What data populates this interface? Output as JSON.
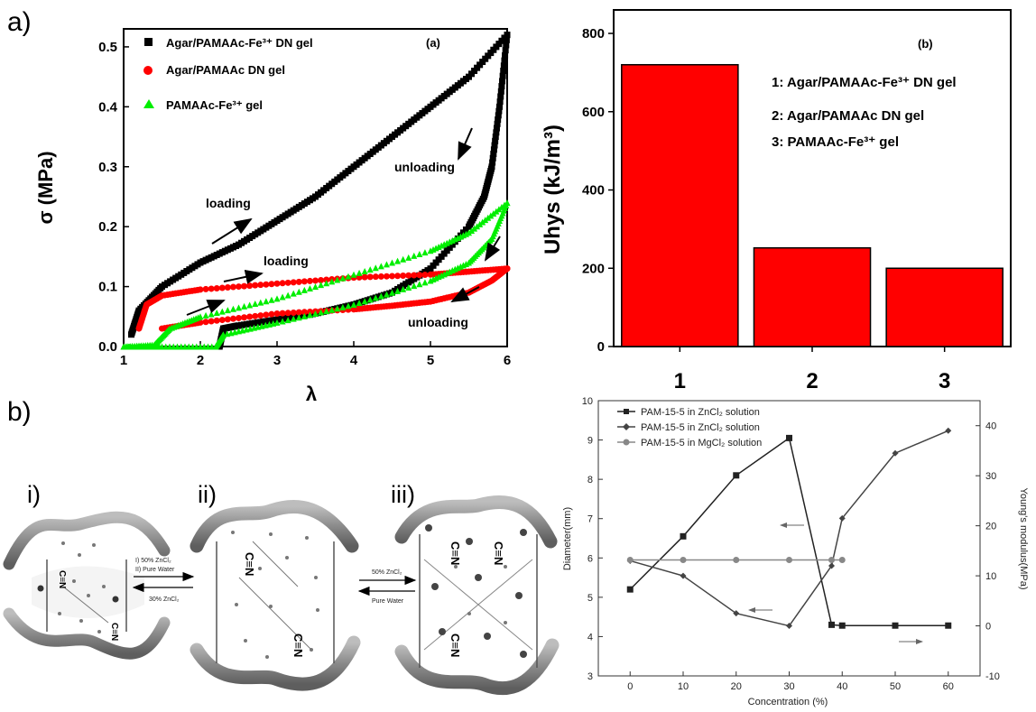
{
  "panel_labels": {
    "a": "a)",
    "b": "b)"
  },
  "chart_data": [
    {
      "type": "line",
      "panel_tag": "(a)",
      "xlabel": "λ",
      "ylabel": "σ (MPa)",
      "xlim": [
        1,
        6
      ],
      "ylim": [
        0,
        0.53
      ],
      "xticks": [
        1,
        2,
        3,
        4,
        5,
        6
      ],
      "yticks": [
        0.0,
        0.1,
        0.2,
        0.3,
        0.4,
        0.5
      ],
      "legend_position": "top-left",
      "annotations": [
        "loading",
        "unloading",
        "loading",
        "unloading"
      ],
      "series": [
        {
          "name": "Agar/PAMAAc-Fe³⁺ DN gel",
          "color": "#000000",
          "marker": "square",
          "loading": [
            [
              1.1,
              0.02
            ],
            [
              1.2,
              0.06
            ],
            [
              1.5,
              0.1
            ],
            [
              2.0,
              0.14
            ],
            [
              2.5,
              0.17
            ],
            [
              3.0,
              0.21
            ],
            [
              3.5,
              0.25
            ],
            [
              4.0,
              0.3
            ],
            [
              4.5,
              0.35
            ],
            [
              5.0,
              0.4
            ],
            [
              5.5,
              0.45
            ],
            [
              6.0,
              0.52
            ]
          ],
          "unloading": [
            [
              6.0,
              0.52
            ],
            [
              5.9,
              0.4
            ],
            [
              5.8,
              0.3
            ],
            [
              5.7,
              0.25
            ],
            [
              5.5,
              0.2
            ],
            [
              5.0,
              0.13
            ],
            [
              4.5,
              0.09
            ],
            [
              4.0,
              0.07
            ],
            [
              3.5,
              0.055
            ],
            [
              3.0,
              0.045
            ],
            [
              2.5,
              0.035
            ],
            [
              2.3,
              0.03
            ],
            [
              2.25,
              0.0
            ]
          ]
        },
        {
          "name": "Agar/PAMAAc DN gel",
          "color": "#ff0000",
          "marker": "circle",
          "loading": [
            [
              1.2,
              0.03
            ],
            [
              1.3,
              0.07
            ],
            [
              1.5,
              0.085
            ],
            [
              2.0,
              0.095
            ],
            [
              3.0,
              0.105
            ],
            [
              4.0,
              0.115
            ],
            [
              5.0,
              0.12
            ],
            [
              5.5,
              0.125
            ],
            [
              6.0,
              0.13
            ]
          ],
          "unloading": [
            [
              6.0,
              0.13
            ],
            [
              5.8,
              0.11
            ],
            [
              5.5,
              0.09
            ],
            [
              5.0,
              0.075
            ],
            [
              4.5,
              0.068
            ],
            [
              4.0,
              0.062
            ],
            [
              3.0,
              0.055
            ],
            [
              2.0,
              0.04
            ],
            [
              1.5,
              0.03
            ]
          ]
        },
        {
          "name": "PAMAAc-Fe³⁺ gel",
          "color": "#00ee00",
          "marker": "triangle",
          "loading": [
            [
              1.0,
              0.0
            ],
            [
              1.4,
              0.003
            ],
            [
              1.6,
              0.03
            ],
            [
              2.0,
              0.05
            ],
            [
              3.0,
              0.08
            ],
            [
              4.0,
              0.12
            ],
            [
              5.0,
              0.16
            ],
            [
              5.5,
              0.19
            ],
            [
              6.0,
              0.24
            ]
          ],
          "unloading": [
            [
              6.0,
              0.24
            ],
            [
              5.8,
              0.18
            ],
            [
              5.5,
              0.14
            ],
            [
              5.0,
              0.11
            ],
            [
              4.0,
              0.07
            ],
            [
              3.0,
              0.04
            ],
            [
              2.3,
              0.02
            ],
            [
              2.2,
              0.0
            ],
            [
              1.5,
              0.0
            ],
            [
              1.0,
              0.0
            ]
          ]
        }
      ]
    },
    {
      "type": "bar",
      "panel_tag": "(b)",
      "ylabel": "Uhys (kJ/m³)",
      "categories": [
        "1",
        "2",
        "3"
      ],
      "values": [
        720,
        252,
        200
      ],
      "color": "#ff0000",
      "ylim": [
        0,
        860
      ],
      "yticks": [
        0,
        200,
        400,
        600,
        800
      ],
      "legend_entries": [
        "1: Agar/PAMAAc-Fe³⁺ DN gel",
        "2: Agar/PAMAAc DN gel",
        "3: PAMAAc-Fe³⁺ gel"
      ]
    },
    {
      "type": "line",
      "xlabel": "Concentration (%)",
      "ylabel": "Diameter(mm)",
      "y2label": "Young's modulus(MPa)",
      "xlim": [
        -6,
        66
      ],
      "ylim": [
        3,
        10
      ],
      "y2lim": [
        -10,
        45
      ],
      "xticks": [
        0,
        10,
        20,
        30,
        40,
        50,
        60
      ],
      "yticks": [
        3,
        4,
        5,
        6,
        7,
        8,
        9,
        10
      ],
      "y2ticks": [
        -10,
        0,
        10,
        20,
        30,
        40
      ],
      "legend_position": "top-left",
      "series": [
        {
          "name": "PAM-15-5 in ZnCl₂ solution",
          "axis": "left",
          "marker": "square",
          "color": "#222222",
          "x": [
            0,
            10,
            20,
            30,
            38,
            40,
            50,
            60
          ],
          "y": [
            5.2,
            6.55,
            8.1,
            9.05,
            4.3,
            4.28,
            4.28,
            4.28
          ]
        },
        {
          "name": "PAM-15-5 in ZnCl₂ solution",
          "axis": "right",
          "marker": "diamond",
          "color": "#444444",
          "x": [
            0,
            10,
            20,
            30,
            38,
            40,
            50,
            60
          ],
          "y": [
            13,
            10,
            2.5,
            0,
            12,
            21.5,
            34.5,
            39
          ]
        },
        {
          "name": "PAM-15-5 in MgCl₂ solution",
          "axis": "left",
          "marker": "circle",
          "color": "#888888",
          "x": [
            0,
            10,
            20,
            30,
            38,
            40
          ],
          "y": [
            5.95,
            5.95,
            5.95,
            5.95,
            5.95,
            5.95
          ]
        }
      ]
    }
  ],
  "schematic": {
    "stage_labels": [
      "i)",
      "ii)",
      "iii)"
    ],
    "arrow1_forward": [
      "I) 50% ZnCl₂",
      "II) Pure Water"
    ],
    "arrow1_back": "30% ZnCl₂",
    "arrow2_forward": "50% ZnCl₂",
    "arrow2_back": "Pure Water",
    "bond_label": "C≡N"
  }
}
